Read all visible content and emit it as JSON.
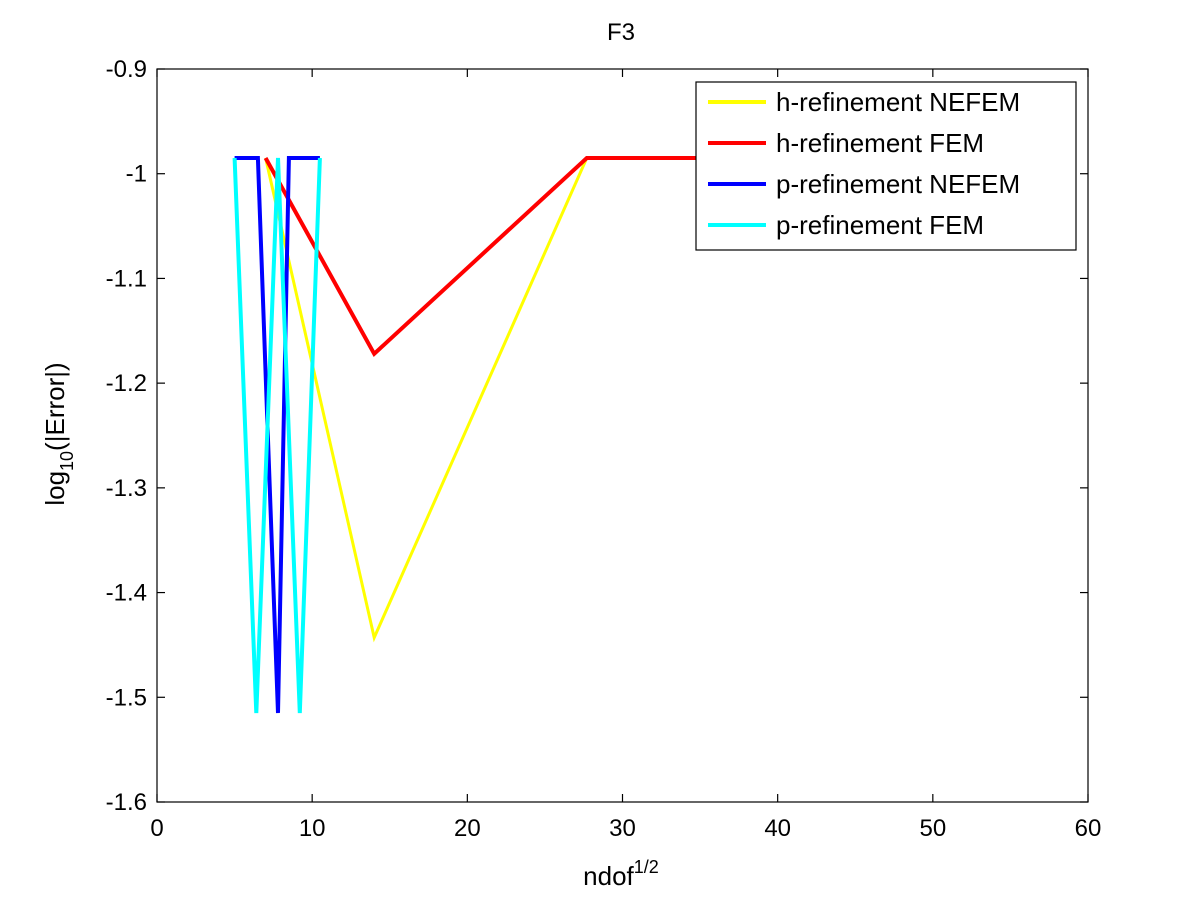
{
  "chart_data": {
    "type": "line",
    "title": "F3",
    "xlabel": "ndof",
    "xlabel_superscript": "1/2",
    "ylabel_prefix": "log",
    "ylabel_subscript": "10",
    "ylabel_suffix": "(|Error|)",
    "xlim": [
      0,
      60
    ],
    "ylim": [
      -1.6,
      -0.9
    ],
    "xticks": [
      0,
      10,
      20,
      30,
      40,
      50,
      60
    ],
    "yticks": [
      -1.6,
      -1.5,
      -1.4,
      -1.3,
      -1.2,
      -1.1,
      -1.0,
      -0.9
    ],
    "xtick_labels": [
      "0",
      "10",
      "20",
      "30",
      "40",
      "50",
      "60"
    ],
    "ytick_labels": [
      "-1.6",
      "-1.5",
      "-1.4",
      "-1.3",
      "-1.2",
      "-1.1",
      "-1",
      "-0.9"
    ],
    "grid": false,
    "legend_position": "top-right",
    "series": [
      {
        "name": "h-refinement NEFEM",
        "color": "#ffff00",
        "x": [
          7,
          14,
          27.7,
          41.6
        ],
        "y": [
          -0.985,
          -1.443,
          -0.985,
          -0.985
        ]
      },
      {
        "name": "h-refinement FEM",
        "color": "#ff0000",
        "x": [
          7,
          14,
          27.7,
          41.6
        ],
        "y": [
          -0.985,
          -1.172,
          -0.985,
          -0.985
        ]
      },
      {
        "name": "p-refinement NEFEM",
        "color": "#0000ff",
        "x": [
          5,
          6.5,
          7.1,
          7.8,
          8.5,
          9.1,
          9.7,
          10.5
        ],
        "y": [
          -0.985,
          -0.985,
          -1.233,
          -1.515,
          -0.985,
          -0.985,
          -0.985,
          -0.985
        ]
      },
      {
        "name": "p-refinement FEM",
        "color": "#00ffff",
        "x": [
          5,
          6.4,
          7.8,
          9.2,
          10.5
        ],
        "y": [
          -0.985,
          -1.515,
          -0.985,
          -1.515,
          -0.985
        ]
      }
    ]
  }
}
